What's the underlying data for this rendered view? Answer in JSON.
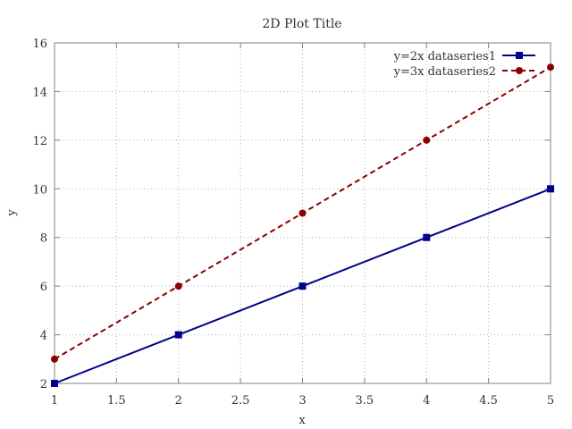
{
  "chart_data": {
    "type": "line",
    "title": "2D Plot Title",
    "xlabel": "x",
    "ylabel": "y",
    "xlim": [
      1,
      5
    ],
    "ylim": [
      2,
      16
    ],
    "x_ticks": [
      "1",
      "1.5",
      "2",
      "2.5",
      "3",
      "3.5",
      "4",
      "4.5",
      "5"
    ],
    "y_ticks": [
      "2",
      "4",
      "6",
      "8",
      "10",
      "12",
      "14",
      "16"
    ],
    "x_tick_values": [
      1,
      1.5,
      2,
      2.5,
      3,
      3.5,
      4,
      4.5,
      5
    ],
    "y_tick_values": [
      2,
      4,
      6,
      8,
      10,
      12,
      14,
      16
    ],
    "grid": true,
    "legend_position": "top-right",
    "series": [
      {
        "name": "y=2x dataseries1",
        "x": [
          1,
          2,
          3,
          4,
          5
        ],
        "y": [
          2,
          4,
          6,
          8,
          10
        ],
        "color": "#00008b",
        "line_style": "solid",
        "marker": "square"
      },
      {
        "name": "y=3x dataseries2",
        "x": [
          1,
          2,
          3,
          4,
          5
        ],
        "y": [
          3,
          6,
          9,
          12,
          15
        ],
        "color": "#8b0000",
        "line_style": "dashed",
        "marker": "circle"
      }
    ]
  }
}
